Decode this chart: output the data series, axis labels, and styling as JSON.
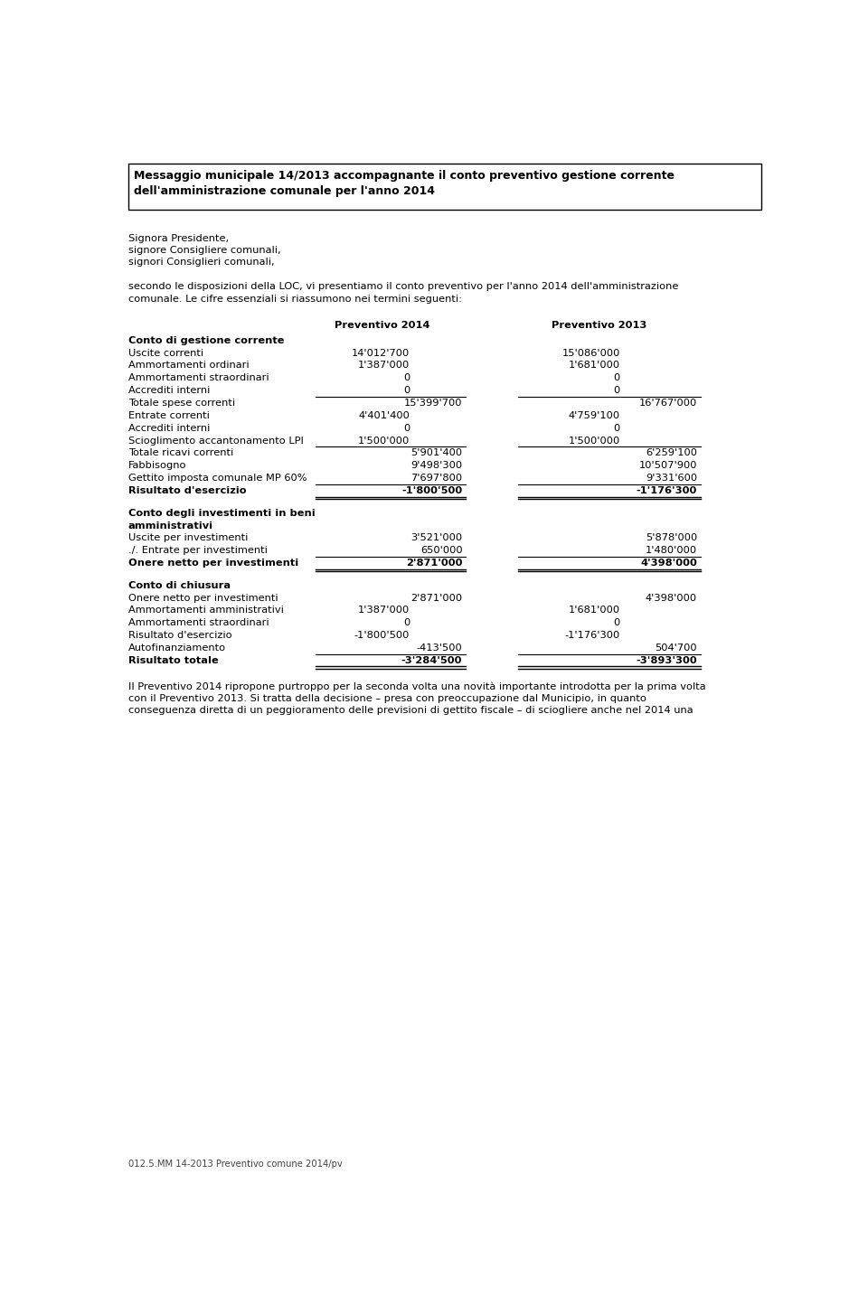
{
  "title_line1": "Messaggio municipale 14/2013 accompagnante il conto preventivo gestione corrente",
  "title_line2": "dell'amministrazione comunale per l'anno 2014",
  "salutation": [
    "Signora Presidente,",
    "signore Consigliere comunali,",
    "signori Consiglieri comunali,"
  ],
  "intro_line1": "secondo le disposizioni della LOC, vi presentiamo il conto preventivo per l'anno 2014 dell'amministrazione",
  "intro_line2": "comunale. Le cifre essenziali si riassumono nei termini seguenti:",
  "col_header1": "Preventivo 2014",
  "col_header2": "Preventivo 2013",
  "sections": [
    {
      "header": "Conto di gestione corrente",
      "header2": "",
      "rows": [
        {
          "label": "Uscite correnti",
          "col1a": "14'012'700",
          "col1b": "",
          "col2a": "15'086'000",
          "col2b": "",
          "bold": false,
          "line_below": false,
          "double_line_below": false
        },
        {
          "label": "Ammortamenti ordinari",
          "col1a": "1'387'000",
          "col1b": "",
          "col2a": "1'681'000",
          "col2b": "",
          "bold": false,
          "line_below": false,
          "double_line_below": false
        },
        {
          "label": "Ammortamenti straordinari",
          "col1a": "0",
          "col1b": "",
          "col2a": "0",
          "col2b": "",
          "bold": false,
          "line_below": false,
          "double_line_below": false
        },
        {
          "label": "Accrediti interni",
          "col1a": "0",
          "col1b": "",
          "col2a": "0",
          "col2b": "",
          "bold": false,
          "line_below": true,
          "double_line_below": false
        },
        {
          "label": "Totale spese correnti",
          "col1a": "",
          "col1b": "15'399'700",
          "col2a": "",
          "col2b": "16'767'000",
          "bold": false,
          "line_below": false,
          "double_line_below": false
        },
        {
          "label": "Entrate correnti",
          "col1a": "4'401'400",
          "col1b": "",
          "col2a": "4'759'100",
          "col2b": "",
          "bold": false,
          "line_below": false,
          "double_line_below": false
        },
        {
          "label": "Accrediti interni",
          "col1a": "0",
          "col1b": "",
          "col2a": "0",
          "col2b": "",
          "bold": false,
          "line_below": false,
          "double_line_below": false
        },
        {
          "label": "Scioglimento accantonamento LPI",
          "col1a": "1'500'000",
          "col1b": "",
          "col2a": "1'500'000",
          "col2b": "",
          "bold": false,
          "line_below": true,
          "double_line_below": false
        },
        {
          "label": "Totale ricavi correnti",
          "col1a": "",
          "col1b": "5'901'400",
          "col2a": "",
          "col2b": "6'259'100",
          "bold": false,
          "line_below": false,
          "double_line_below": false
        },
        {
          "label": "Fabbisogno",
          "col1a": "",
          "col1b": "9'498'300",
          "col2a": "",
          "col2b": "10'507'900",
          "bold": false,
          "line_below": false,
          "double_line_below": false
        },
        {
          "label": "Gettito imposta comunale MP 60%",
          "col1a": "",
          "col1b": "7'697'800",
          "col2a": "",
          "col2b": "9'331'600",
          "bold": false,
          "line_below": true,
          "double_line_below": false
        },
        {
          "label": "Risultato d'esercizio",
          "col1a": "",
          "col1b": "-1'800'500",
          "col2a": "",
          "col2b": "-1'176'300",
          "bold": true,
          "line_below": false,
          "double_line_below": true
        }
      ]
    },
    {
      "header": "Conto degli investimenti in beni",
      "header2": "amministrativi",
      "rows": [
        {
          "label": "Uscite per investimenti",
          "col1a": "",
          "col1b": "3'521'000",
          "col2a": "",
          "col2b": "5'878'000",
          "bold": false,
          "line_below": false,
          "double_line_below": false
        },
        {
          "label": "./. Entrate per investimenti",
          "col1a": "",
          "col1b": "650'000",
          "col2a": "",
          "col2b": "1'480'000",
          "bold": false,
          "line_below": true,
          "double_line_below": false
        },
        {
          "label": "Onere netto per investimenti",
          "col1a": "",
          "col1b": "2'871'000",
          "col2a": "",
          "col2b": "4'398'000",
          "bold": true,
          "line_below": false,
          "double_line_below": true
        }
      ]
    },
    {
      "header": "Conto di chiusura",
      "header2": "",
      "rows": [
        {
          "label": "Onere netto per investimenti",
          "col1a": "",
          "col1b": "2'871'000",
          "col2a": "",
          "col2b": "4'398'000",
          "bold": false,
          "line_below": false,
          "double_line_below": false
        },
        {
          "label": "Ammortamenti amministrativi",
          "col1a": "1'387'000",
          "col1b": "",
          "col2a": "1'681'000",
          "col2b": "",
          "bold": false,
          "line_below": false,
          "double_line_below": false
        },
        {
          "label": "Ammortamenti straordinari",
          "col1a": "0",
          "col1b": "",
          "col2a": "0",
          "col2b": "",
          "bold": false,
          "line_below": false,
          "double_line_below": false
        },
        {
          "label": "Risultato d'esercizio",
          "col1a": "-1'800'500",
          "col1b": "",
          "col2a": "-1'176'300",
          "col2b": "",
          "bold": false,
          "line_below": false,
          "double_line_below": false
        },
        {
          "label": "Autofinanziamento",
          "col1a": "",
          "col1b": "-413'500",
          "col2a": "",
          "col2b": "504'700",
          "bold": false,
          "line_below": true,
          "double_line_below": false
        },
        {
          "label": "Risultato totale",
          "col1a": "",
          "col1b": "-3'284'500",
          "col2a": "",
          "col2b": "-3'893'300",
          "bold": true,
          "line_below": false,
          "double_line_below": true
        }
      ]
    }
  ],
  "footer_line1": "Il Preventivo 2014 ripropone purtroppo per la seconda volta una novità importante introdotta per la prima volta",
  "footer_line2": "con il Preventivo 2013. Si tratta della decisione – presa con preoccupazione dal Municipio, in quanto",
  "footer_line3": "conseguenza diretta di un peggioramento delle previsioni di gettito fiscale – di sciogliere anche nel 2014 una",
  "footer_ref": "012.5.MM 14-2013 Preventivo comune 2014/pv",
  "bg_color": "#ffffff"
}
